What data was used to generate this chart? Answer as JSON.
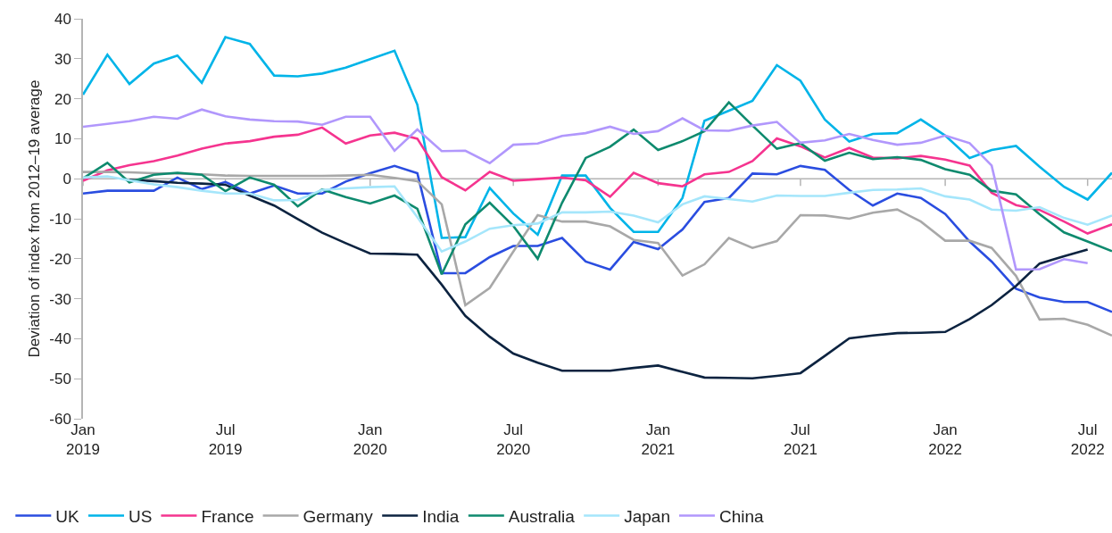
{
  "chart_data": {
    "type": "line",
    "ylabel": "Deviation of index from 2012–19 average",
    "x": [
      "2019-01",
      "2019-02",
      "2019-03",
      "2019-04",
      "2019-05",
      "2019-06",
      "2019-07",
      "2019-08",
      "2019-09",
      "2019-10",
      "2019-11",
      "2019-12",
      "2020-01",
      "2020-02",
      "2020-03",
      "2020-04",
      "2020-05",
      "2020-06",
      "2020-07",
      "2020-08",
      "2020-09",
      "2020-10",
      "2020-11",
      "2020-12",
      "2021-01",
      "2021-02",
      "2021-03",
      "2021-04",
      "2021-05",
      "2021-06",
      "2021-07",
      "2021-08",
      "2021-09",
      "2021-10",
      "2021-11",
      "2021-12",
      "2022-01",
      "2022-02",
      "2022-03",
      "2022-04",
      "2022-05",
      "2022-06",
      "2022-07",
      "2022-08"
    ],
    "xlim": [
      "2019-01",
      "2022-08"
    ],
    "xticks": [
      {
        "value": "2019-01",
        "label": "Jan\n2019"
      },
      {
        "value": "2019-07",
        "label": "Jul\n2019"
      },
      {
        "value": "2020-01",
        "label": "Jan\n2020"
      },
      {
        "value": "2020-07",
        "label": "Jul\n2020"
      },
      {
        "value": "2021-01",
        "label": "Jan\n2021"
      },
      {
        "value": "2021-07",
        "label": "Jul\n2021"
      },
      {
        "value": "2022-01",
        "label": "Jan\n2022"
      },
      {
        "value": "2022-07",
        "label": "Jul\n2022"
      }
    ],
    "ylim": [
      -60,
      40
    ],
    "yticks": [
      -60,
      -50,
      -40,
      -30,
      -20,
      -10,
      0,
      10,
      20,
      30,
      40
    ],
    "grid": false,
    "legend": "bottom",
    "marker": "none",
    "line_style": "solid",
    "ref_lines": [
      {
        "axis": "y",
        "value": 0,
        "color": "#b4b4b4"
      }
    ],
    "series": [
      {
        "name": "UK",
        "color": "#2a4de0",
        "values": [
          -3.7,
          -3,
          -3,
          -3,
          0.3,
          -2.6,
          -0.8,
          -3.7,
          -1.7,
          -3.7,
          -3.7,
          -0.7,
          1.4,
          3.2,
          1.4,
          -23.6,
          -23.6,
          -19.6,
          -16.8,
          -16.8,
          -14.8,
          -20.7,
          -22.7,
          -15.8,
          -17.6,
          -12.7,
          -5.8,
          -4.8,
          1.3,
          1.1,
          3.2,
          2.2,
          -2.8,
          -6.7,
          -3.7,
          -4.8,
          -8.8,
          -15.7,
          -20.7,
          -27.5,
          -29.7,
          -30.8,
          -30.8,
          -33.3
        ]
      },
      {
        "name": "US",
        "color": "#00b4e8",
        "values": [
          21,
          31,
          23.7,
          28.8,
          30.8,
          24,
          35.4,
          33.7,
          25.8,
          25.6,
          26.3,
          27.8,
          29.9,
          32,
          18.5,
          -14.8,
          -14.6,
          -2.3,
          -8.7,
          -14,
          0.8,
          0.8,
          -7.3,
          -13.3,
          -13.3,
          -4.8,
          14.5,
          17,
          19.5,
          28.4,
          24.5,
          14.8,
          9.3,
          11.2,
          11.4,
          14.8,
          10.8,
          5.2,
          7.2,
          8.2,
          3,
          -2,
          -5.2,
          1.5
        ]
      },
      {
        "name": "France",
        "color": "#f5348f",
        "values": [
          -0.5,
          2.1,
          3.4,
          4.4,
          5.8,
          7.5,
          8.8,
          9.4,
          10.5,
          11,
          12.8,
          8.8,
          10.8,
          11.5,
          10,
          0.4,
          -2.9,
          1.7,
          -0.5,
          -0.1,
          0.3,
          -0.4,
          -4.5,
          1.5,
          -1.1,
          -1.9,
          1.1,
          1.7,
          4.4,
          10.1,
          8.1,
          5.3,
          7.7,
          5.3,
          5.1,
          5.7,
          4.8,
          3.3,
          -3.5,
          -6.6,
          -7.8,
          -10.7,
          -13.7,
          -11.4
        ]
      },
      {
        "name": "Germany",
        "color": "#a8a8a8",
        "values": [
          1.7,
          1.7,
          1.6,
          1.4,
          1.3,
          1.1,
          0.8,
          0.7,
          0.7,
          0.7,
          0.7,
          0.8,
          1,
          0.2,
          -0.6,
          -6.4,
          -31.6,
          -27.3,
          -18.2,
          -9.1,
          -10.7,
          -10.7,
          -11.9,
          -15.3,
          -16.1,
          -24.2,
          -21.4,
          -14.8,
          -17.3,
          -15.6,
          -9.1,
          -9.2,
          -10,
          -8.5,
          -7.7,
          -10.7,
          -15.5,
          -15.5,
          -17.3,
          -24.3,
          -35.2,
          -35,
          -36.5,
          -39.2
        ]
      },
      {
        "name": "India",
        "color": "#0c2340",
        "values": [
          null,
          null,
          -0.3,
          -0.6,
          -1,
          -1.2,
          -1.5,
          -4.2,
          -6.7,
          -10.1,
          -13.5,
          -16.1,
          -18.7,
          -18.8,
          -19,
          -26.5,
          -34.3,
          -39.5,
          -43.7,
          -46,
          -48,
          -48,
          -48,
          -47.3,
          -46.7,
          -48.3,
          -49.7,
          -49.8,
          -49.9,
          -49.3,
          -48.6,
          -44.3,
          -39.9,
          -39.2,
          -38.6,
          -38.5,
          -38.3,
          -35.1,
          -31.6,
          -26.8,
          -21.2,
          -19.4,
          -17.7,
          null
        ]
      },
      {
        "name": "Australia",
        "color": "#0e8a6e",
        "values": [
          0.1,
          4,
          -0.9,
          1,
          1.5,
          1,
          -3.1,
          0.3,
          -1.5,
          -6.9,
          -2.7,
          -4.6,
          -6.2,
          -4.2,
          -7.5,
          -23.9,
          -11.4,
          -6,
          -11.8,
          -20,
          -6,
          5.2,
          8,
          12.3,
          7.2,
          9.4,
          11.9,
          19.1,
          13.3,
          7.5,
          8.9,
          4.5,
          6.5,
          4.9,
          5.4,
          4.7,
          2.4,
          1,
          -3,
          -3.9,
          -8.9,
          -13.4,
          -15.7,
          -18.1
        ]
      },
      {
        "name": "Japan",
        "color": "#a5e6fb",
        "values": [
          0.3,
          0.6,
          -0.4,
          -1.4,
          -2.1,
          -3,
          -3.7,
          -3.7,
          -5.4,
          -5.3,
          -2.8,
          -2.4,
          -2.1,
          -1.9,
          -9.6,
          -18.2,
          -15.7,
          -12.5,
          -11.6,
          -11.2,
          -8.4,
          -8.4,
          -8.2,
          -9.2,
          -10.9,
          -6.4,
          -4.4,
          -5.1,
          -5.7,
          -4.2,
          -4.3,
          -4.3,
          -3.5,
          -2.8,
          -2.7,
          -2.4,
          -4.4,
          -5.2,
          -7.7,
          -8,
          -7.1,
          -9.8,
          -11.5,
          -9.2
        ]
      },
      {
        "name": "China",
        "color": "#b197fc",
        "values": [
          13,
          13.7,
          14.4,
          15.5,
          15,
          17.3,
          15.6,
          14.8,
          14.4,
          14.3,
          13.5,
          15.5,
          15.5,
          7,
          12.3,
          6.9,
          7,
          3.9,
          8.5,
          8.8,
          10.7,
          11.4,
          13,
          11.2,
          11.9,
          15.1,
          12.1,
          12,
          13.3,
          14.2,
          9,
          9.6,
          11.2,
          9.7,
          8.5,
          9,
          10.8,
          8.9,
          3.3,
          -22.7,
          -22.6,
          -20.1,
          -21.1,
          null
        ]
      }
    ]
  }
}
